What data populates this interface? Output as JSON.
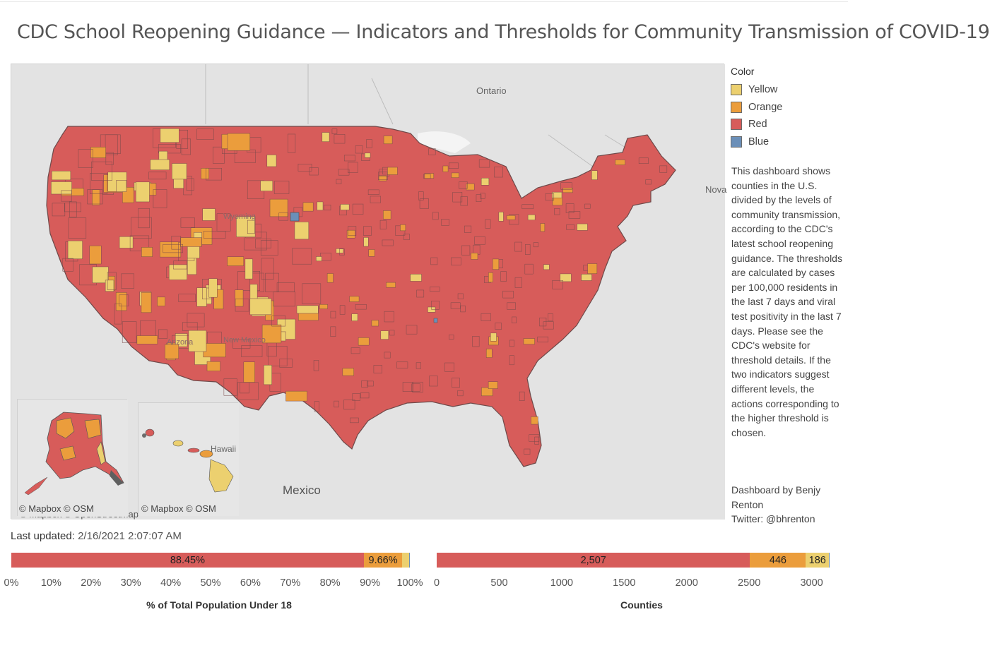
{
  "header": {
    "title": "CDC School Reopening Guidance — Indicators and Thresholds for Community Transmission of COVID-19"
  },
  "colors": {
    "yellow": "#ecd06f",
    "orange": "#eb9d3c",
    "red": "#d75c5a",
    "blue": "#6b8fb8"
  },
  "map": {
    "labels": {
      "ontario": "Ontario",
      "mexico": "Mexico",
      "nova": "Nova",
      "wyoming": "Wyoming",
      "arizona": "Arizona",
      "new_mexico": "New Mexico",
      "hawaii": "Hawaii"
    },
    "attribution_ak": "© Mapbox  © OSM",
    "attribution_hi": "© Mapbox  © OSM",
    "attribution_main": "© Mapbox  © OpenStreetMap"
  },
  "legend": {
    "title": "Color",
    "items": [
      {
        "label": "Yellow",
        "color": "#ecd06f"
      },
      {
        "label": "Orange",
        "color": "#eb9d3c"
      },
      {
        "label": "Red",
        "color": "#d75c5a"
      },
      {
        "label": "Blue",
        "color": "#6b8fb8"
      }
    ]
  },
  "description": "This dashboard shows counties in the U.S. divided by the levels of community transmission, according to the CDC's latest school reopening guidance. The thresholds are calculated by cases per 100,000 residents in the last 7 days and viral test positivity in the last 7 days. Please see the CDC's website for threshold details. If the two indicators suggest different levels, the actions corresponding to the higher threshold is chosen.",
  "credit": {
    "line1": "Dashboard by Benjy Renton",
    "line2": "Twitter: @bhrenton"
  },
  "updated": {
    "label": "Last updated:",
    "value": "2/16/2021 2:07:07 AM"
  },
  "chart_data": [
    {
      "type": "bar",
      "orientation": "horizontal-stacked",
      "series": [
        {
          "name": "Red",
          "values": [
            88.45
          ],
          "label": "88.45%"
        },
        {
          "name": "Orange",
          "values": [
            9.66
          ],
          "label": "9.66%"
        },
        {
          "name": "Yellow",
          "values": [
            1.7
          ],
          "label": ""
        },
        {
          "name": "Blue",
          "values": [
            0.19
          ],
          "label": ""
        }
      ],
      "xlabel": "% of Total Population Under 18",
      "xlim": [
        0,
        100
      ],
      "ticks": [
        "0%",
        "10%",
        "20%",
        "30%",
        "40%",
        "50%",
        "60%",
        "70%",
        "80%",
        "90%",
        "100%"
      ]
    },
    {
      "type": "bar",
      "orientation": "horizontal-stacked",
      "series": [
        {
          "name": "Red",
          "values": [
            2507
          ],
          "label": "2,507"
        },
        {
          "name": "Orange",
          "values": [
            446
          ],
          "label": "446"
        },
        {
          "name": "Yellow",
          "values": [
            186
          ],
          "label": "186"
        },
        {
          "name": "Blue",
          "values": [
            3
          ],
          "label": ""
        }
      ],
      "xlabel": "Counties",
      "xlim": [
        0,
        3200
      ],
      "ticks": [
        "0",
        "500",
        "1000",
        "1500",
        "2000",
        "2500",
        "3000"
      ]
    }
  ]
}
